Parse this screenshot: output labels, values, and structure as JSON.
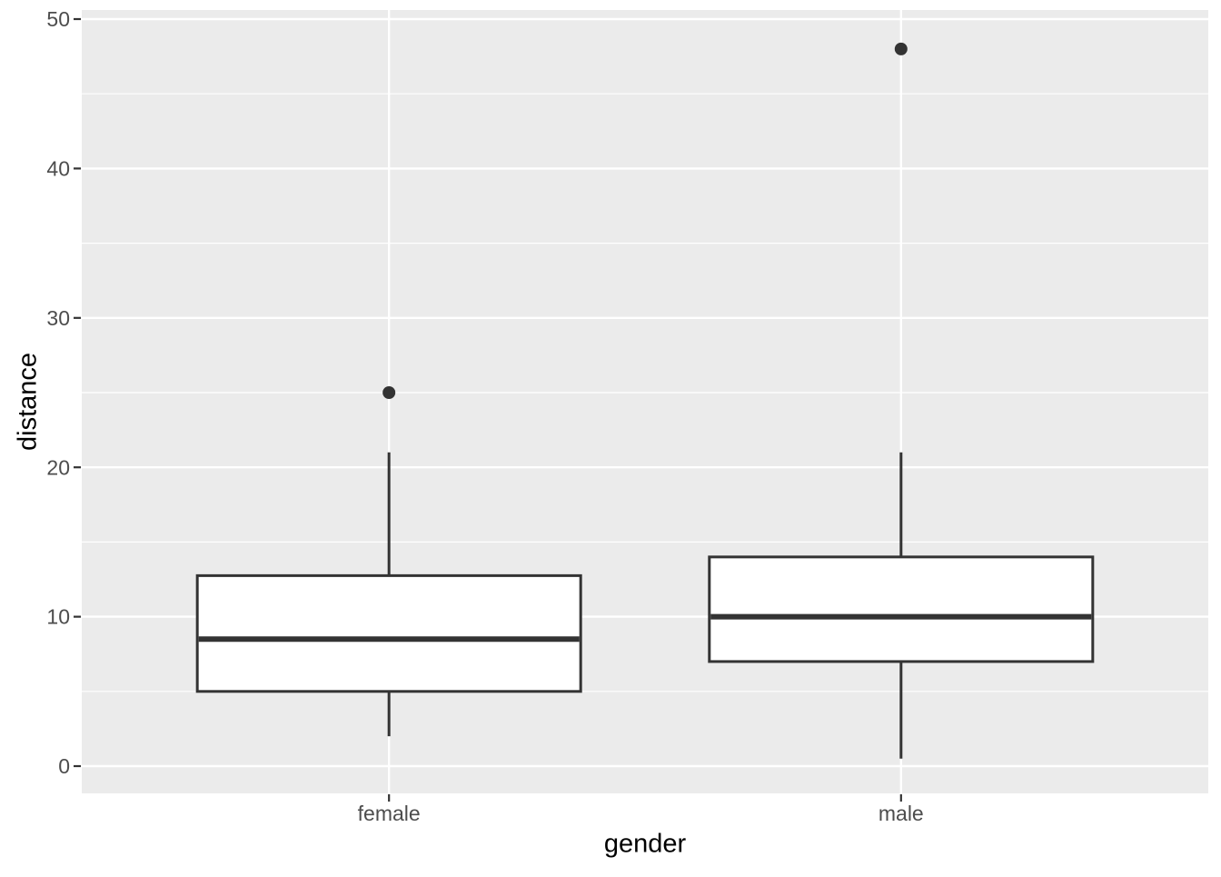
{
  "chart_data": {
    "type": "boxplot",
    "title": "",
    "xlabel": "gender",
    "ylabel": "distance",
    "categories": [
      "female",
      "male"
    ],
    "series": [
      {
        "name": "female",
        "min": 2,
        "q1": 5,
        "median": 8.5,
        "q3": 12.75,
        "max": 21,
        "outliers": [
          25
        ]
      },
      {
        "name": "male",
        "min": 0.5,
        "q1": 7,
        "median": 10,
        "q3": 14,
        "max": 21,
        "outliers": [
          48
        ]
      }
    ],
    "y_ticks": [
      0,
      10,
      20,
      30,
      40,
      50
    ],
    "y_tick_labels": [
      "0",
      "10",
      "20",
      "30",
      "40",
      "50"
    ],
    "y_minor_ticks": [
      5,
      15,
      25,
      35,
      45
    ],
    "ylim": [
      -1.9,
      50.6
    ],
    "grid": "horizontal major+minor, vertical major at categories",
    "legend": "none",
    "theme": "ggplot2-grey",
    "colors": {
      "panel_bg": "#EBEBEB",
      "grid": "#FFFFFF",
      "box_fill": "#FFFFFF",
      "box_stroke": "#333333",
      "outlier": "#333333",
      "axis_text": "#4D4D4D",
      "axis_title": "#000000",
      "tick_mark": "#333333",
      "figure_bg": "#FFFFFF"
    }
  }
}
